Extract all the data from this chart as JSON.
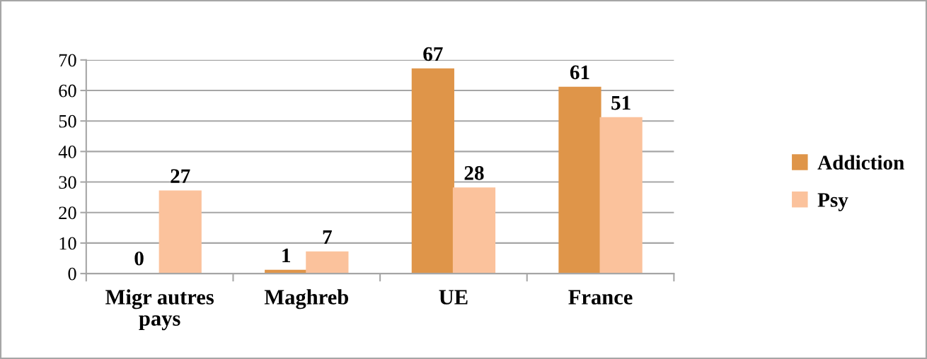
{
  "chart_data": {
    "type": "bar",
    "categories": [
      "Migr autres pays",
      "Maghreb",
      "UE",
      "France"
    ],
    "series": [
      {
        "name": "Addiction",
        "color": "#df9549",
        "values": [
          0,
          1,
          67,
          61
        ]
      },
      {
        "name": "Psy",
        "color": "#fbc29c",
        "values": [
          27,
          7,
          28,
          51
        ]
      }
    ],
    "ylim": [
      0,
      70
    ],
    "yticks": [
      0,
      10,
      20,
      30,
      40,
      50,
      60,
      70
    ],
    "grid": "y",
    "legend": "right",
    "data_labels": true
  }
}
